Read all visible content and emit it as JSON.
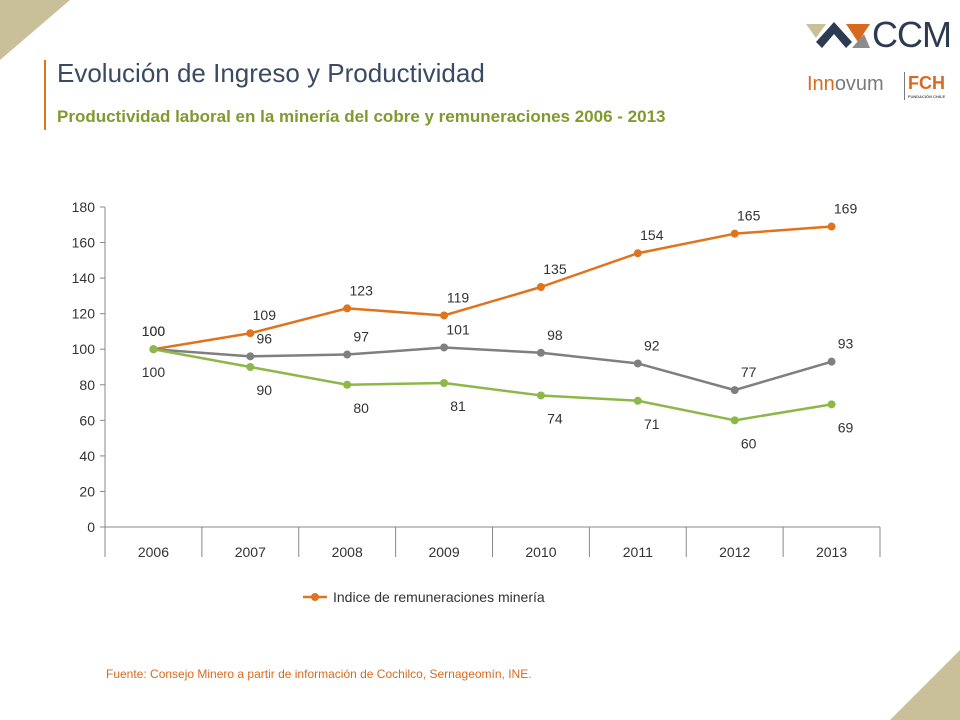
{
  "header": {
    "title": "Evolución de Ingreso y Productividad",
    "subtitle": "Productividad laboral en la minería del cobre y remuneraciones 2006 - 2013"
  },
  "logos": {
    "ccm": "CCM",
    "innovum_prefix": "Inn",
    "innovum_rest": "ovum",
    "fch": "FCH",
    "fch_sub": "FUNDACIÓN CHILE"
  },
  "footer": {
    "source": "Fuente: Consejo Minero a partir de información de Cochilco, Sernageomín, INE."
  },
  "colors": {
    "orange": "#e0731e",
    "gray": "#7f7f7f",
    "green": "#8db849",
    "title": "#3a4a63",
    "subtitle": "#7f9a2e",
    "corner": "#c9c09a"
  },
  "chart_data": {
    "type": "line",
    "x": [
      "2006",
      "2007",
      "2008",
      "2009",
      "2010",
      "2011",
      "2012",
      "2013"
    ],
    "ylim": [
      0,
      180
    ],
    "yticks": [
      0,
      20,
      40,
      60,
      80,
      100,
      120,
      140,
      160,
      180
    ],
    "grid": false,
    "legend_position": "bottom",
    "series": [
      {
        "name": "Indice de remuneraciones minería",
        "color": "#e0731e",
        "values": [
          100,
          109,
          123,
          119,
          135,
          154,
          165,
          169
        ],
        "label_pos": "above"
      },
      {
        "color": "#7f7f7f",
        "values": [
          100,
          96,
          97,
          101,
          98,
          92,
          77,
          93
        ],
        "label_pos": "above"
      },
      {
        "color": "#8db849",
        "values": [
          100,
          90,
          80,
          81,
          74,
          71,
          60,
          69
        ],
        "label_pos": "below"
      }
    ]
  }
}
